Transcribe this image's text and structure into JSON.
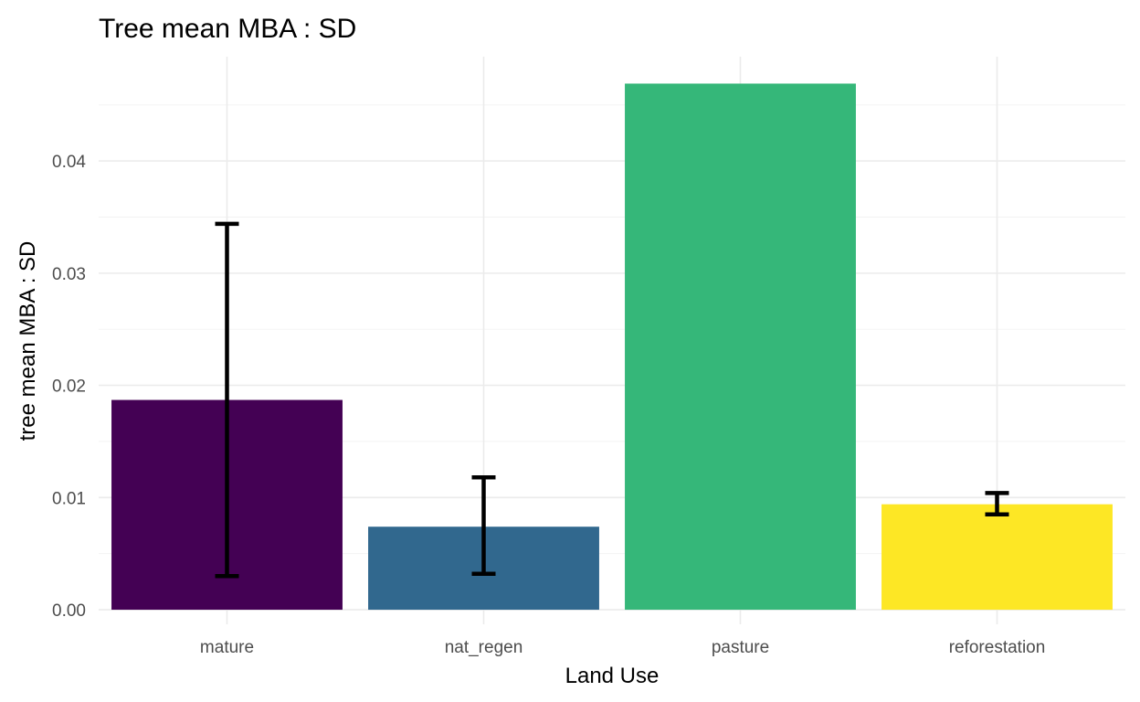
{
  "chart_data": {
    "type": "bar",
    "title": "Tree mean MBA : SD",
    "xlabel": "Land Use",
    "ylabel": "tree mean MBA : SD",
    "categories": [
      "mature",
      "nat_regen",
      "pasture",
      "reforestation"
    ],
    "values": [
      0.0187,
      0.0074,
      0.0469,
      0.0094
    ],
    "error_low": [
      0.003,
      0.0032,
      null,
      0.0085
    ],
    "error_high": [
      0.0344,
      0.0118,
      null,
      0.0104
    ],
    "colors": [
      "#440154",
      "#31688e",
      "#35b779",
      "#fde725"
    ],
    "ylim": [
      -0.0013,
      0.0493
    ],
    "yticks": [
      0,
      0.01,
      0.02,
      0.03,
      0.04
    ],
    "ytick_labels": [
      "0.00",
      "0.01",
      "0.02",
      "0.03",
      "0.04"
    ],
    "grid": true,
    "legend": "none"
  }
}
